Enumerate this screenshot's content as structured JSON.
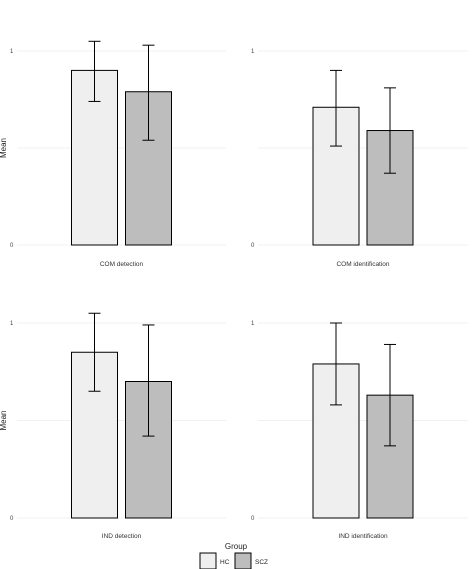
{
  "chart_data": [
    {
      "type": "bar",
      "categories": [
        "COM detection"
      ],
      "series": [
        {
          "name": "HC",
          "values": [
            0.9
          ],
          "error_low": [
            0.74
          ],
          "error_high": [
            1.05
          ]
        },
        {
          "name": "SCZ",
          "values": [
            0.79
          ],
          "error_low": [
            0.54
          ],
          "error_high": [
            1.03
          ]
        }
      ],
      "ylabel": "Mean",
      "ylim": [
        0,
        1
      ],
      "yticks": [
        "0",
        "1"
      ]
    },
    {
      "type": "bar",
      "categories": [
        "COM identification"
      ],
      "series": [
        {
          "name": "HC",
          "values": [
            0.71
          ],
          "error_low": [
            0.51
          ],
          "error_high": [
            0.9
          ]
        },
        {
          "name": "SCZ",
          "values": [
            0.59
          ],
          "error_low": [
            0.37
          ],
          "error_high": [
            0.81
          ]
        }
      ],
      "ylabel": "",
      "ylim": [
        0,
        1
      ],
      "yticks": [
        "0",
        "1"
      ]
    },
    {
      "type": "bar",
      "categories": [
        "IND detection"
      ],
      "series": [
        {
          "name": "HC",
          "values": [
            0.85
          ],
          "error_low": [
            0.65
          ],
          "error_high": [
            1.05
          ]
        },
        {
          "name": "SCZ",
          "values": [
            0.7
          ],
          "error_low": [
            0.42
          ],
          "error_high": [
            0.99
          ]
        }
      ],
      "ylabel": "Mean",
      "ylim": [
        0,
        1
      ],
      "yticks": [
        "0",
        "1"
      ]
    },
    {
      "type": "bar",
      "categories": [
        "IND identification"
      ],
      "series": [
        {
          "name": "HC",
          "values": [
            0.79
          ],
          "error_low": [
            0.58
          ],
          "error_high": [
            1.0
          ]
        },
        {
          "name": "SCZ",
          "values": [
            0.63
          ],
          "error_low": [
            0.37
          ],
          "error_high": [
            0.89
          ]
        }
      ],
      "ylabel": "",
      "ylim": [
        0,
        1
      ],
      "yticks": [
        "0",
        "1"
      ]
    }
  ],
  "legend": {
    "title": "Group",
    "placement": "bottom",
    "items": [
      {
        "label": "HC",
        "color": "#efefef"
      },
      {
        "label": "SCZ",
        "color": "#bdbdbd"
      }
    ]
  },
  "colors": {
    "grid": "#ebebeb",
    "bar_stroke": "#000000",
    "hc_fill": "#efefef",
    "scz_fill": "#bdbdbd"
  }
}
